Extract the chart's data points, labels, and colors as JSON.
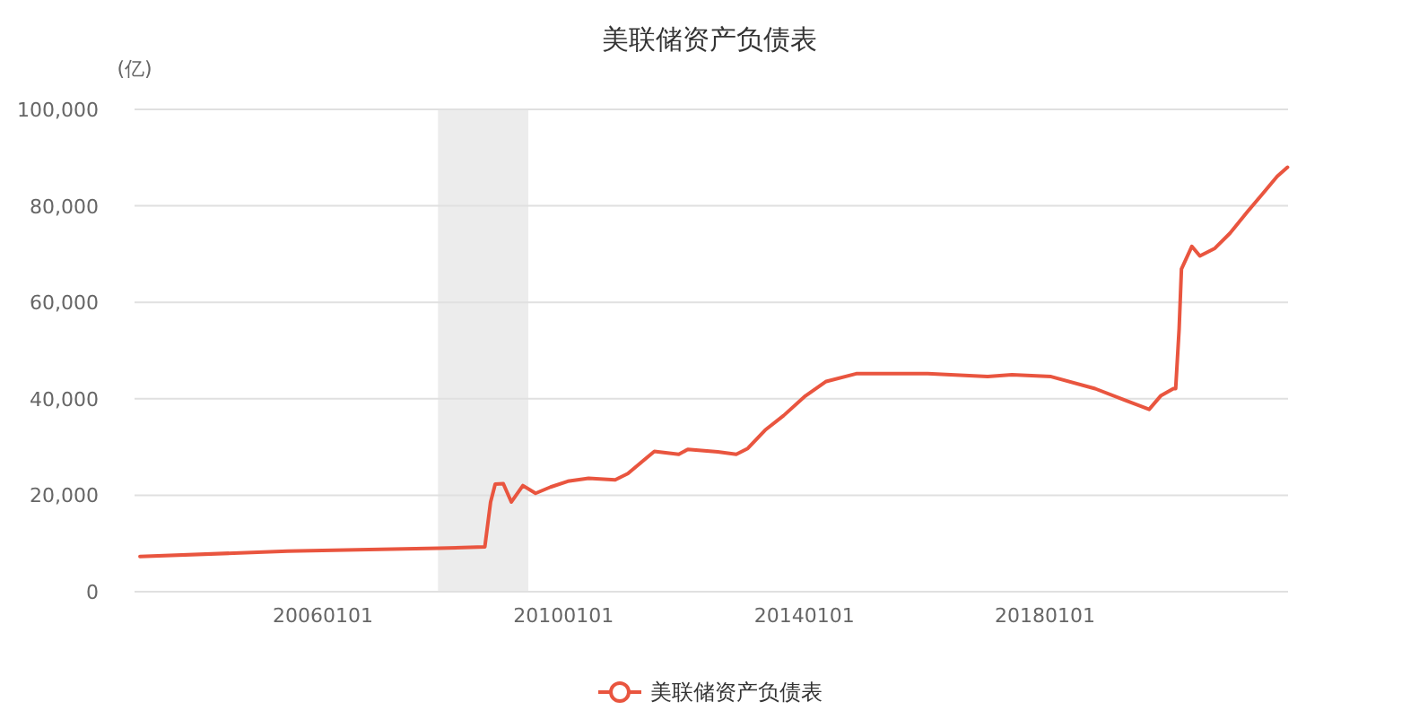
{
  "chart_data": {
    "type": "line",
    "title": "美联储资产负债表",
    "ylabel": "(亿)",
    "x": [
      "2002-12-18",
      "2005-06-01",
      "2007-12-05",
      "2008-09-10",
      "2008-10-15",
      "2008-11-12",
      "2008-12-31",
      "2009-02-18",
      "2009-04-29",
      "2009-07-15",
      "2009-10-14",
      "2010-01-27",
      "2010-06-02",
      "2010-11-10",
      "2011-01-26",
      "2011-07-06",
      "2011-12-01",
      "2012-01-25",
      "2012-07-25",
      "2012-11-14",
      "2013-01-23",
      "2013-05-08",
      "2013-08-28",
      "2014-01-08",
      "2014-05-14",
      "2014-11-12",
      "2016-01-20",
      "2017-01-18",
      "2017-06-14",
      "2018-02-07",
      "2018-11-01",
      "2019-05-01",
      "2019-09-25",
      "2019-12-04",
      "2020-02-19",
      "2020-03-04",
      "2020-03-25",
      "2020-04-08",
      "2020-06-10",
      "2020-07-29",
      "2020-10-28",
      "2021-01-27",
      "2021-05-12",
      "2021-08-11",
      "2021-11-10",
      "2022-01-12"
    ],
    "series": [
      {
        "name": "美联储资产负债表",
        "color": "#e9553f",
        "values": [
          7300,
          8400,
          9000,
          9300,
          18600,
          22300,
          22400,
          18600,
          22000,
          20400,
          21700,
          22900,
          23500,
          23200,
          24500,
          29100,
          28500,
          29500,
          29000,
          28500,
          29700,
          33500,
          36500,
          40600,
          43600,
          45200,
          45200,
          44600,
          45000,
          44600,
          42100,
          39700,
          37800,
          40600,
          42100,
          42100,
          54500,
          66900,
          71600,
          69600,
          71200,
          74300,
          78700,
          82400,
          86100,
          88000
        ]
      }
    ],
    "xlim": [
      "2002-11-15",
      "2022-01-15"
    ],
    "xticks": [
      {
        "value": "2006-01-01",
        "label": "20060101"
      },
      {
        "value": "2010-01-01",
        "label": "20100101"
      },
      {
        "value": "2014-01-01",
        "label": "20140101"
      },
      {
        "value": "2018-01-01",
        "label": "20180101"
      }
    ],
    "ylim": [
      0,
      100000
    ],
    "yticks": [
      0,
      {
        "value": 20000,
        "label": "20,000"
      },
      {
        "value": 40000,
        "label": "40,000"
      },
      {
        "value": 60000,
        "label": "60,000"
      },
      {
        "value": 80000,
        "label": "80,000"
      },
      {
        "value": 100000,
        "label": "100,000"
      }
    ],
    "bands": [
      {
        "axis": "x",
        "from": "2007-12-01",
        "to": "2009-06-01",
        "color": "#ececec"
      }
    ],
    "grid": "y",
    "legend": "bottom"
  }
}
